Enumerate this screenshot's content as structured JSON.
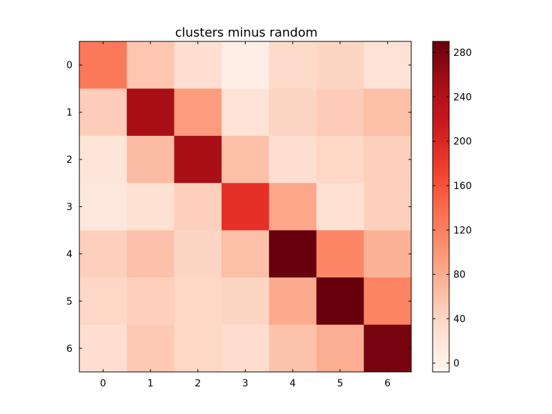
{
  "chart_data": {
    "type": "heatmap",
    "title": "clusters minus random",
    "xlabel": "",
    "ylabel": "",
    "x_tick_labels": [
      "0",
      "1",
      "2",
      "3",
      "4",
      "5",
      "6"
    ],
    "y_tick_labels": [
      "0",
      "1",
      "2",
      "3",
      "4",
      "5",
      "6"
    ],
    "values": [
      [
        128,
        55,
        30,
        5,
        35,
        40,
        25
      ],
      [
        48,
        250,
        95,
        25,
        40,
        50,
        62
      ],
      [
        20,
        65,
        250,
        62,
        30,
        38,
        45
      ],
      [
        15,
        28,
        45,
        190,
        85,
        28,
        45
      ],
      [
        45,
        60,
        40,
        62,
        290,
        115,
        75
      ],
      [
        38,
        45,
        38,
        40,
        82,
        290,
        118
      ],
      [
        30,
        52,
        38,
        32,
        58,
        78,
        280
      ]
    ],
    "colormap": "Reds",
    "vmin": -8,
    "vmax": 290,
    "colorbar": {
      "ticks": [
        0,
        40,
        80,
        120,
        160,
        200,
        240,
        280
      ],
      "tick_labels": [
        "0",
        "40",
        "80",
        "120",
        "160",
        "200",
        "240",
        "280"
      ]
    },
    "grid": false,
    "legend": "none"
  }
}
